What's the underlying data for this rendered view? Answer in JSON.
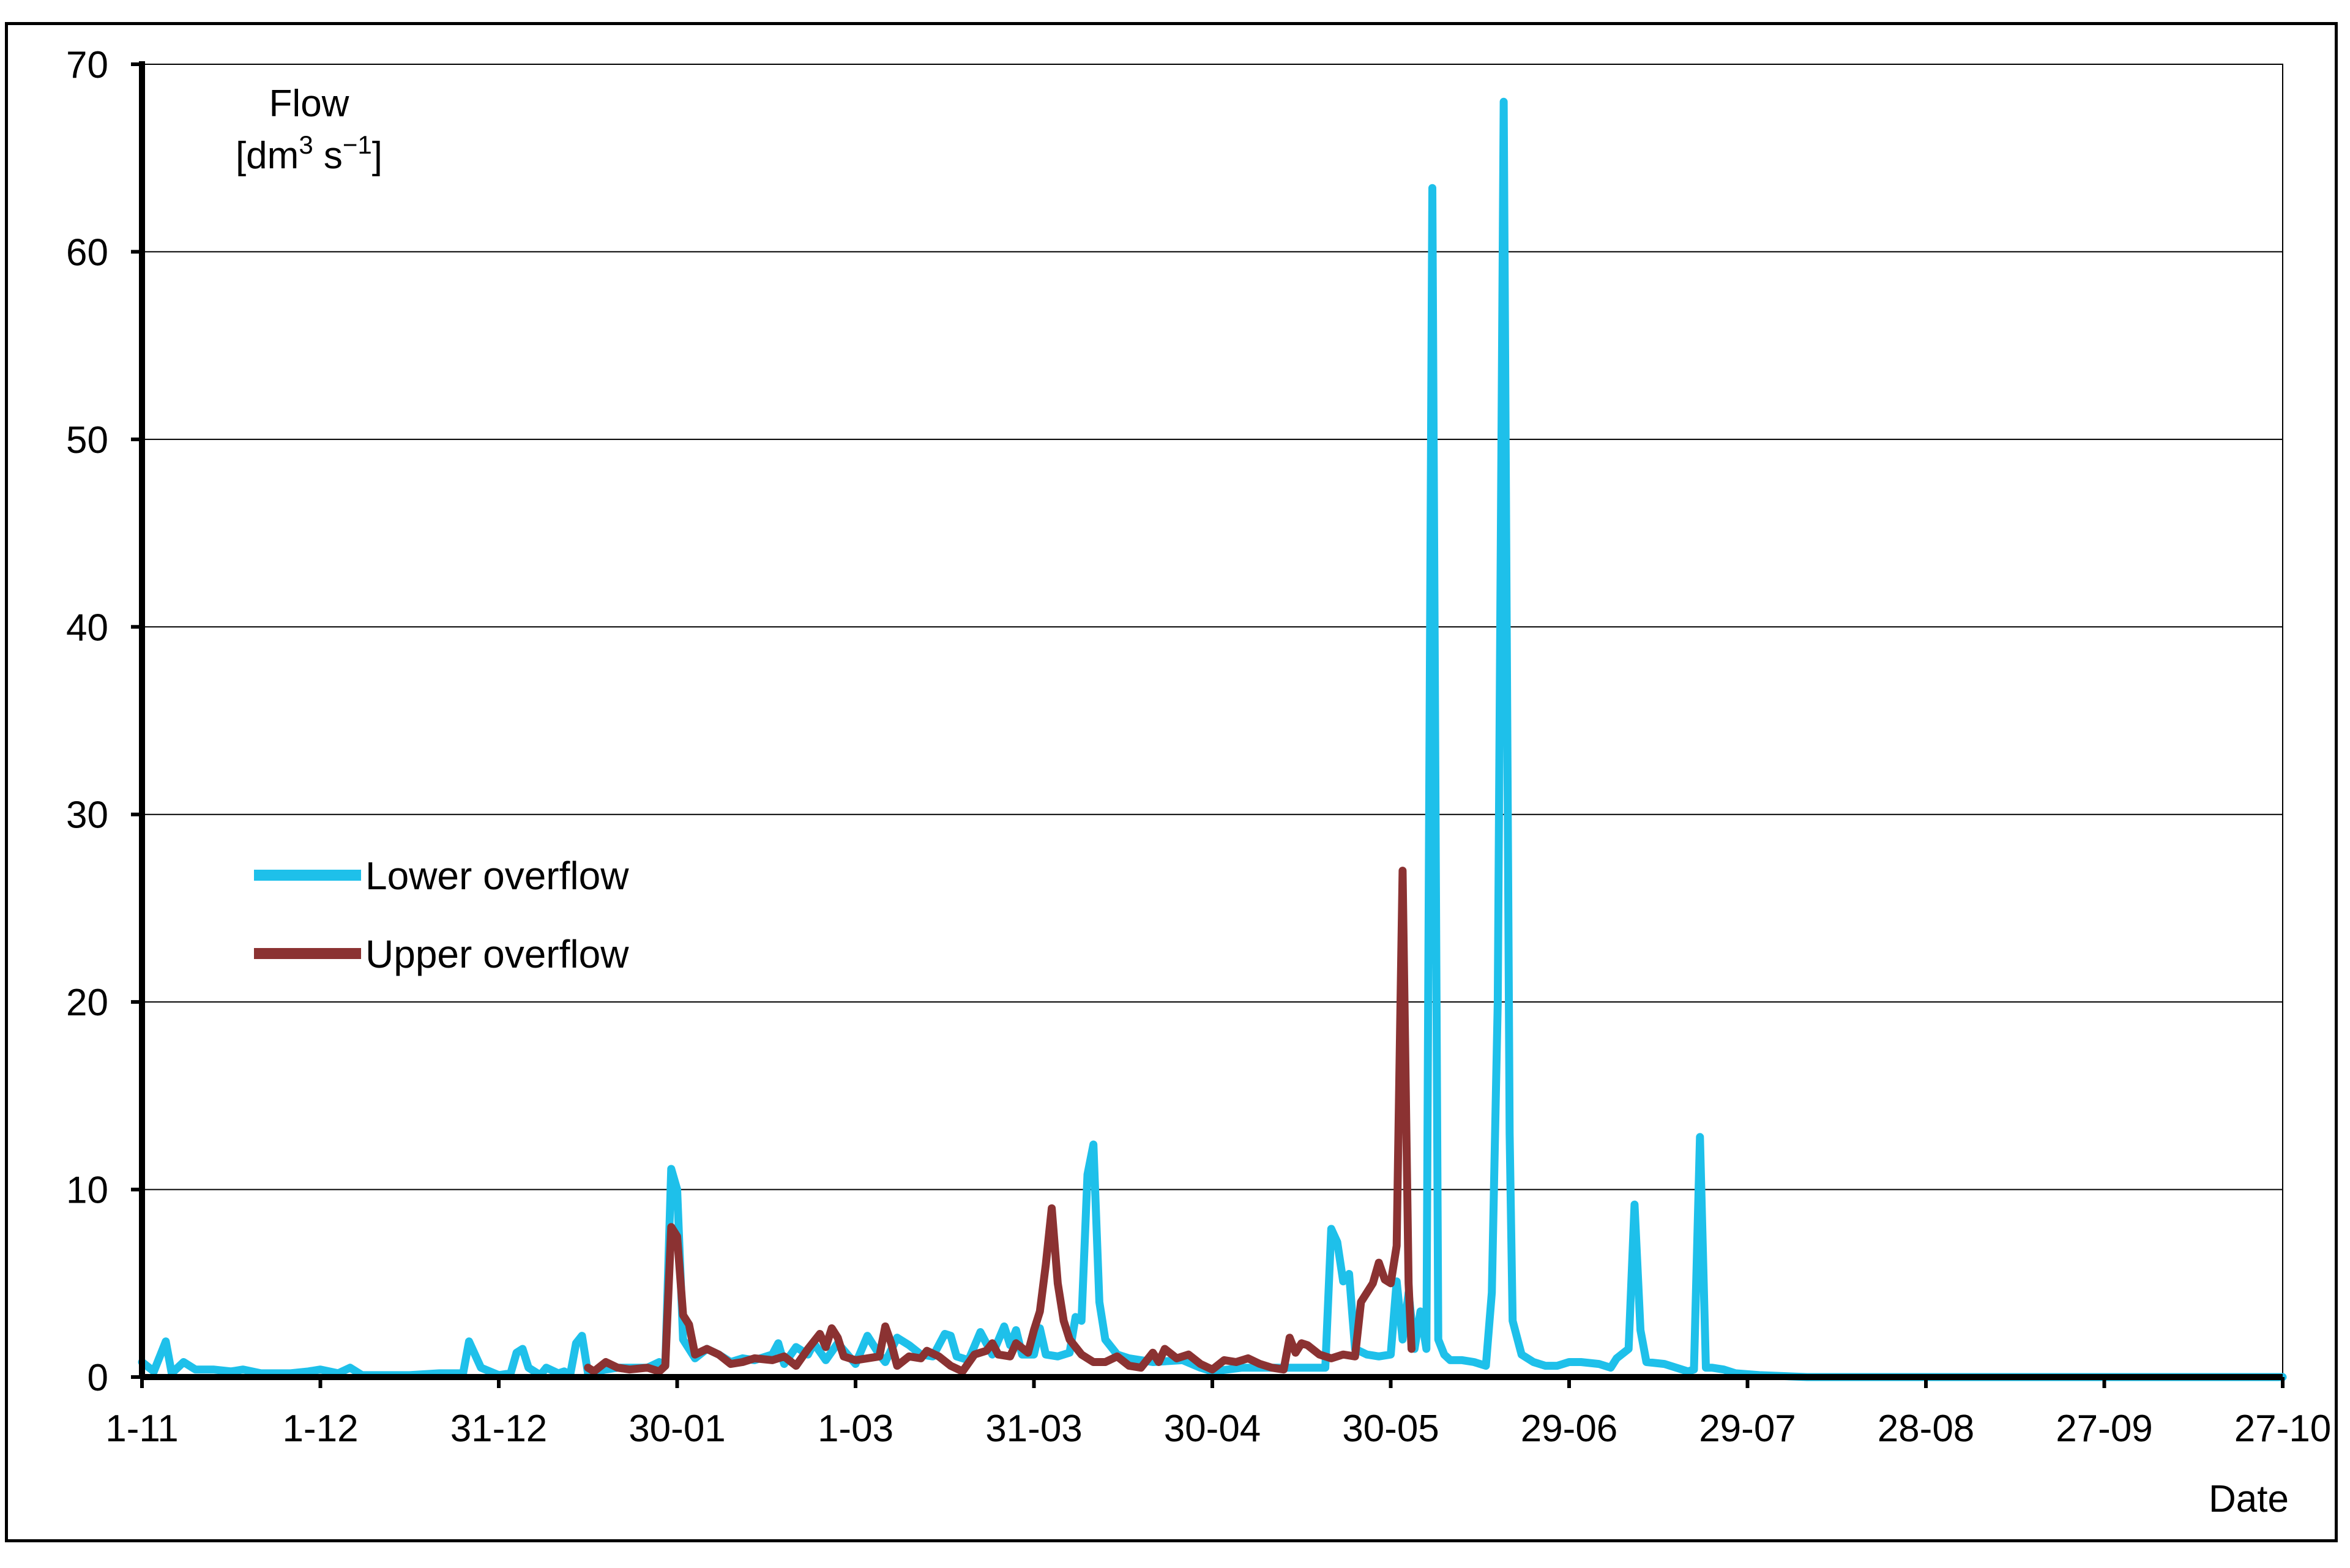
{
  "chart_data": {
    "type": "line",
    "ylabel_line1": "Flow",
    "ylabel_line2_parts": [
      "[dm",
      "3",
      " s",
      "−1",
      "]"
    ],
    "xlabel": "Date",
    "ylim": [
      0,
      70
    ],
    "yticks": [
      0,
      10,
      20,
      30,
      40,
      50,
      60,
      70
    ],
    "xlim": [
      0,
      360
    ],
    "xticks": [
      {
        "day": 0,
        "label": "1-11"
      },
      {
        "day": 30,
        "label": "1-12"
      },
      {
        "day": 60,
        "label": "31-12"
      },
      {
        "day": 90,
        "label": "30-01"
      },
      {
        "day": 120,
        "label": "1-03"
      },
      {
        "day": 150,
        "label": "31-03"
      },
      {
        "day": 180,
        "label": "30-04"
      },
      {
        "day": 210,
        "label": "30-05"
      },
      {
        "day": 240,
        "label": "29-06"
      },
      {
        "day": 270,
        "label": "29-07"
      },
      {
        "day": 300,
        "label": "28-08"
      },
      {
        "day": 330,
        "label": "27-09"
      },
      {
        "day": 360,
        "label": "27-10"
      }
    ],
    "grid": "horizontal",
    "legend_position": "middle-left",
    "series": [
      {
        "name": "Lower overflow",
        "color": "#1ec0ea",
        "points": [
          [
            0,
            0.8
          ],
          [
            2,
            0.3
          ],
          [
            4,
            1.9
          ],
          [
            5,
            0.2
          ],
          [
            7,
            0.8
          ],
          [
            9,
            0.4
          ],
          [
            12,
            0.4
          ],
          [
            15,
            0.3
          ],
          [
            17,
            0.4
          ],
          [
            20,
            0.2
          ],
          [
            25,
            0.2
          ],
          [
            28,
            0.3
          ],
          [
            30,
            0.4
          ],
          [
            33,
            0.2
          ],
          [
            35,
            0.5
          ],
          [
            37,
            0.1
          ],
          [
            40,
            0.1
          ],
          [
            45,
            0.1
          ],
          [
            50,
            0.2
          ],
          [
            54,
            0.2
          ],
          [
            55,
            1.9
          ],
          [
            57,
            0.5
          ],
          [
            60,
            0.1
          ],
          [
            62,
            0.2
          ],
          [
            63,
            1.3
          ],
          [
            64,
            1.5
          ],
          [
            65,
            0.5
          ],
          [
            67,
            0.1
          ],
          [
            68,
            0.5
          ],
          [
            70,
            0.2
          ],
          [
            71,
            0.3
          ],
          [
            72,
            0.1
          ],
          [
            73,
            1.8
          ],
          [
            74,
            2.2
          ],
          [
            75,
            0.2
          ],
          [
            78,
            0.4
          ],
          [
            80,
            0.5
          ],
          [
            85,
            0.5
          ],
          [
            87,
            0.8
          ],
          [
            88,
            0.6
          ],
          [
            89,
            11.1
          ],
          [
            90,
            10.0
          ],
          [
            91,
            2.0
          ],
          [
            93,
            1.0
          ],
          [
            95,
            1.5
          ],
          [
            97,
            1.2
          ],
          [
            99,
            0.8
          ],
          [
            101,
            1.0
          ],
          [
            103,
            0.9
          ],
          [
            106,
            1.2
          ],
          [
            107,
            1.8
          ],
          [
            108,
            0.7
          ],
          [
            110,
            1.6
          ],
          [
            112,
            1.2
          ],
          [
            113,
            1.8
          ],
          [
            115,
            0.9
          ],
          [
            117,
            1.8
          ],
          [
            120,
            0.7
          ],
          [
            122,
            2.2
          ],
          [
            124,
            1.2
          ],
          [
            125,
            0.8
          ],
          [
            127,
            2.1
          ],
          [
            129,
            1.7
          ],
          [
            131,
            1.2
          ],
          [
            133,
            1.1
          ],
          [
            135,
            2.3
          ],
          [
            136,
            2.2
          ],
          [
            137,
            1.1
          ],
          [
            139,
            0.9
          ],
          [
            141,
            2.4
          ],
          [
            143,
            1.2
          ],
          [
            145,
            2.7
          ],
          [
            146,
            1.7
          ],
          [
            147,
            2.5
          ],
          [
            148,
            1.2
          ],
          [
            150,
            1.2
          ],
          [
            151,
            2.6
          ],
          [
            152,
            1.2
          ],
          [
            154,
            1.1
          ],
          [
            156,
            1.3
          ],
          [
            157,
            3.2
          ],
          [
            158,
            3.0
          ],
          [
            159,
            10.8
          ],
          [
            160,
            12.4
          ],
          [
            161,
            4.0
          ],
          [
            162,
            2.0
          ],
          [
            164,
            1.2
          ],
          [
            166,
            1.0
          ],
          [
            170,
            0.8
          ],
          [
            175,
            0.9
          ],
          [
            178,
            0.5
          ],
          [
            180,
            0.3
          ],
          [
            185,
            0.5
          ],
          [
            190,
            0.5
          ],
          [
            195,
            0.5
          ],
          [
            199,
            0.5
          ],
          [
            200,
            7.9
          ],
          [
            201,
            7.2
          ],
          [
            202,
            5.1
          ],
          [
            203,
            5.5
          ],
          [
            204,
            1.5
          ],
          [
            206,
            1.2
          ],
          [
            208,
            1.1
          ],
          [
            210,
            1.2
          ],
          [
            211,
            5.1
          ],
          [
            212,
            2.0
          ],
          [
            213,
            4.5
          ],
          [
            214,
            1.5
          ],
          [
            215,
            3.5
          ],
          [
            216,
            1.5
          ],
          [
            217,
            63.4
          ],
          [
            218,
            2.0
          ],
          [
            219,
            1.2
          ],
          [
            220,
            0.9
          ],
          [
            222,
            0.9
          ],
          [
            224,
            0.8
          ],
          [
            226,
            0.6
          ],
          [
            227,
            4.5
          ],
          [
            228,
            20.0
          ],
          [
            229,
            68.0
          ],
          [
            230,
            13.0
          ],
          [
            230.5,
            3.0
          ],
          [
            232,
            1.2
          ],
          [
            234,
            0.8
          ],
          [
            236,
            0.6
          ],
          [
            238,
            0.6
          ],
          [
            240,
            0.8
          ],
          [
            242,
            0.8
          ],
          [
            245,
            0.7
          ],
          [
            247,
            0.5
          ],
          [
            248,
            1.0
          ],
          [
            250,
            1.5
          ],
          [
            251,
            9.2
          ],
          [
            252,
            2.5
          ],
          [
            253,
            0.8
          ],
          [
            256,
            0.7
          ],
          [
            258,
            0.5
          ],
          [
            260,
            0.3
          ],
          [
            261,
            0.4
          ],
          [
            262,
            12.8
          ],
          [
            263,
            0.5
          ],
          [
            264,
            0.5
          ],
          [
            266,
            0.4
          ],
          [
            268,
            0.2
          ],
          [
            272,
            0.1
          ],
          [
            280,
            0.0
          ],
          [
            300,
            0.0
          ],
          [
            330,
            0.0
          ],
          [
            360,
            0.0
          ]
        ]
      },
      {
        "name": "Upper overflow",
        "color": "#8b3232",
        "points": [
          [
            75,
            0.5
          ],
          [
            76,
            0.3
          ],
          [
            78,
            0.8
          ],
          [
            80,
            0.5
          ],
          [
            82,
            0.4
          ],
          [
            85,
            0.5
          ],
          [
            87,
            0.3
          ],
          [
            88,
            0.6
          ],
          [
            89,
            8.0
          ],
          [
            90,
            7.5
          ],
          [
            91,
            3.3
          ],
          [
            92,
            2.8
          ],
          [
            93,
            1.2
          ],
          [
            95,
            1.5
          ],
          [
            97,
            1.2
          ],
          [
            99,
            0.7
          ],
          [
            101,
            0.8
          ],
          [
            103,
            1.0
          ],
          [
            106,
            0.9
          ],
          [
            108,
            1.1
          ],
          [
            110,
            0.6
          ],
          [
            112,
            1.5
          ],
          [
            114,
            2.3
          ],
          [
            115,
            1.6
          ],
          [
            116,
            2.6
          ],
          [
            117,
            2.1
          ],
          [
            118,
            1.1
          ],
          [
            120,
            0.9
          ],
          [
            122,
            1.0
          ],
          [
            124,
            1.1
          ],
          [
            125,
            2.7
          ],
          [
            126,
            1.8
          ],
          [
            127,
            0.6
          ],
          [
            129,
            1.1
          ],
          [
            131,
            1.0
          ],
          [
            132,
            1.4
          ],
          [
            134,
            1.1
          ],
          [
            136,
            0.6
          ],
          [
            138,
            0.3
          ],
          [
            140,
            1.2
          ],
          [
            142,
            1.4
          ],
          [
            143,
            1.8
          ],
          [
            144,
            1.2
          ],
          [
            146,
            1.1
          ],
          [
            147,
            1.8
          ],
          [
            149,
            1.3
          ],
          [
            150,
            2.5
          ],
          [
            151,
            3.5
          ],
          [
            152,
            6.0
          ],
          [
            153,
            9.0
          ],
          [
            154,
            5.0
          ],
          [
            155,
            3.0
          ],
          [
            156,
            2.0
          ],
          [
            158,
            1.2
          ],
          [
            160,
            0.8
          ],
          [
            162,
            0.8
          ],
          [
            164,
            1.1
          ],
          [
            166,
            0.6
          ],
          [
            168,
            0.5
          ],
          [
            170,
            1.3
          ],
          [
            171,
            0.8
          ],
          [
            172,
            1.5
          ],
          [
            174,
            1.0
          ],
          [
            176,
            1.2
          ],
          [
            178,
            0.7
          ],
          [
            180,
            0.4
          ],
          [
            182,
            0.9
          ],
          [
            184,
            0.8
          ],
          [
            186,
            1.0
          ],
          [
            188,
            0.7
          ],
          [
            190,
            0.5
          ],
          [
            192,
            0.4
          ],
          [
            193,
            2.1
          ],
          [
            194,
            1.3
          ],
          [
            195,
            1.8
          ],
          [
            196,
            1.7
          ],
          [
            198,
            1.2
          ],
          [
            200,
            1.0
          ],
          [
            202,
            1.2
          ],
          [
            204,
            1.1
          ],
          [
            205,
            4.0
          ],
          [
            206,
            4.5
          ],
          [
            207,
            5.0
          ],
          [
            208,
            6.1
          ],
          [
            209,
            5.2
          ],
          [
            210,
            5.0
          ],
          [
            211,
            7.0
          ],
          [
            212,
            27.0
          ],
          [
            213,
            5.0
          ],
          [
            213.5,
            1.5
          ]
        ]
      }
    ]
  }
}
